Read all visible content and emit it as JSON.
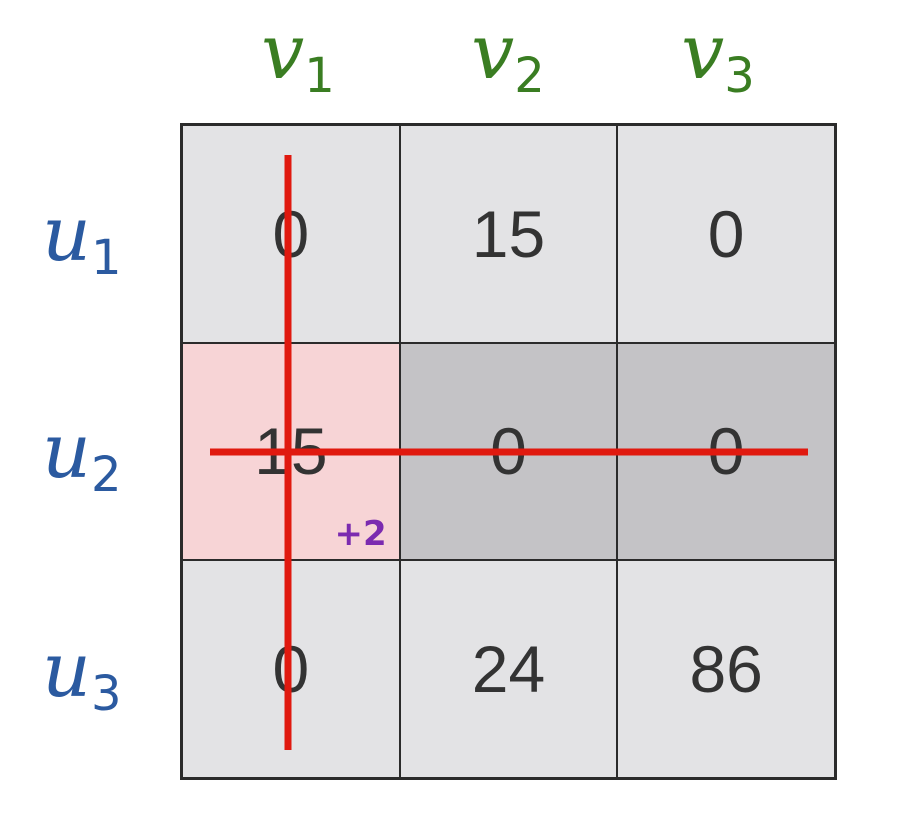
{
  "colors": {
    "col_label": "#3a7d22",
    "row_label": "#2b5aa0",
    "cell_default": "#e3e3e5",
    "cell_covered": "#c4c3c6",
    "cell_highlight": "#f7d4d6",
    "cover_line": "#e0190f",
    "bonus_text": "#7b2bb0"
  },
  "columns": [
    {
      "letter": "v",
      "index": "1"
    },
    {
      "letter": "v",
      "index": "2"
    },
    {
      "letter": "v",
      "index": "3"
    }
  ],
  "rows": [
    {
      "letter": "u",
      "index": "1"
    },
    {
      "letter": "u",
      "index": "2"
    },
    {
      "letter": "u",
      "index": "3"
    }
  ],
  "matrix": [
    [
      {
        "value": "0",
        "state": "default"
      },
      {
        "value": "15",
        "state": "default"
      },
      {
        "value": "0",
        "state": "default"
      }
    ],
    [
      {
        "value": "15",
        "state": "highlight",
        "bonus": "+2"
      },
      {
        "value": "0",
        "state": "covered"
      },
      {
        "value": "0",
        "state": "covered"
      }
    ],
    [
      {
        "value": "0",
        "state": "default"
      },
      {
        "value": "24",
        "state": "default"
      },
      {
        "value": "86",
        "state": "default"
      }
    ]
  ],
  "cover_lines": [
    {
      "orientation": "vertical",
      "column": "v1"
    },
    {
      "orientation": "horizontal",
      "row": "u2"
    }
  ]
}
